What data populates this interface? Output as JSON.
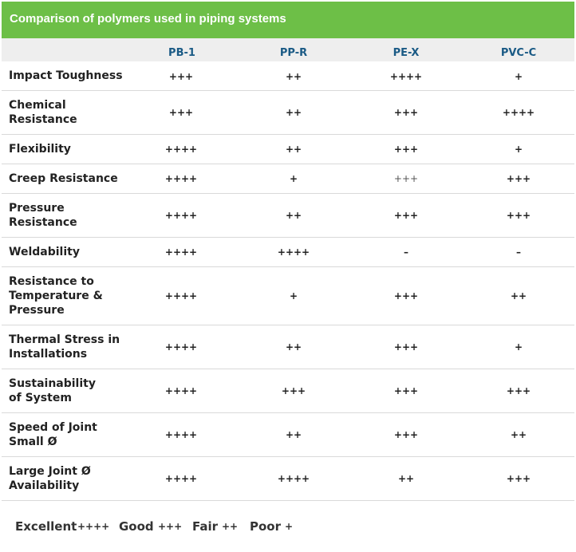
{
  "title": "Comparison of polymers used in piping systems",
  "columns": [
    "PB-1",
    "PP-R",
    "PE-X",
    "PVC-C"
  ],
  "rows": [
    {
      "label_lines": [
        "Impact Toughness"
      ],
      "values": [
        "+++",
        "++",
        "++++",
        "+"
      ]
    },
    {
      "label_lines": [
        "Chemical",
        "Resistance"
      ],
      "values": [
        "+++",
        "++",
        "+++",
        "++++"
      ]
    },
    {
      "label_lines": [
        "Flexibility"
      ],
      "values": [
        "++++",
        "++",
        "+++",
        "+"
      ]
    },
    {
      "label_lines": [
        "Creep Resistance"
      ],
      "values": [
        "++++",
        "+",
        "+++",
        "+++"
      ]
    },
    {
      "label_lines": [
        "Pressure",
        "Resistance"
      ],
      "values": [
        "++++",
        "++",
        "+++",
        "+++"
      ]
    },
    {
      "label_lines": [
        "Weldability"
      ],
      "values": [
        "++++",
        "++++",
        "–",
        "–"
      ]
    },
    {
      "label_lines": [
        "Resistance to",
        "Temperature &",
        "Pressure"
      ],
      "values": [
        "++++",
        "+",
        "+++",
        "++"
      ]
    },
    {
      "label_lines": [
        "Thermal Stress in",
        "Installations"
      ],
      "values": [
        "++++",
        "++",
        "+++",
        "+"
      ]
    },
    {
      "label_lines": [
        "Sustainability",
        "of System"
      ],
      "values": [
        "++++",
        "+++",
        "+++",
        "+++"
      ]
    },
    {
      "label_lines": [
        "Speed of Joint",
        "Small Ø"
      ],
      "values": [
        "++++",
        "++",
        "+++",
        "++"
      ]
    },
    {
      "label_lines": [
        "Large Joint Ø",
        "Availability"
      ],
      "values": [
        "++++",
        "++++",
        "++",
        "+++"
      ]
    }
  ],
  "legend": [
    {
      "label": "Excellent",
      "mark": "++++"
    },
    {
      "label": "Good",
      "mark": "+++"
    },
    {
      "label": "Fair",
      "mark": "++"
    },
    {
      "label": "Poor",
      "mark": "+"
    }
  ],
  "colors": {
    "title_bar": "#6dbf47",
    "header_band": "#eeeeee",
    "column_header_text": "#1a5a85"
  }
}
